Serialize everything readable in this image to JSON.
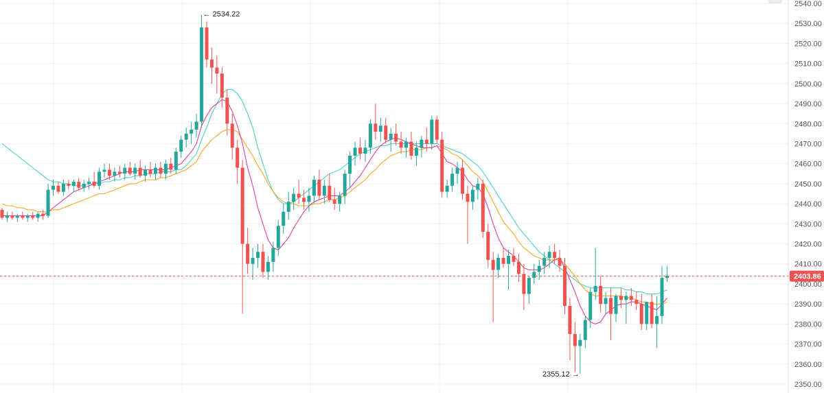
{
  "chart_data": {
    "type": "candlestick",
    "ylim": [
      2350,
      2540
    ],
    "y_ticks": [
      "2350.00",
      "2360.00",
      "2370.00",
      "2380.00",
      "2390.00",
      "2400.00",
      "2410.00",
      "2420.00",
      "2430.00",
      "2440.00",
      "2450.00",
      "2460.00",
      "2470.00",
      "2480.00",
      "2490.00",
      "2500.00",
      "2510.00",
      "2520.00",
      "2530.00",
      "2540.00"
    ],
    "grid": true,
    "current_price": "2403.86",
    "current_price_value": 2403.86,
    "high_annotation": "← 2534.22",
    "high_value": 2534.22,
    "high_index": 39,
    "low_annotation": "2355.12 →",
    "low_value": 2355.12,
    "low_index": 113,
    "colors": {
      "up": "#26a69a",
      "down": "#ef5350",
      "ma_fast": "#e040a0",
      "ma_mid": "#f5a623",
      "ma_slow": "#4dd0c8",
      "price_line": "#ef5350",
      "grid": "#f0f0f0"
    },
    "candles": [
      [
        2437,
        2438,
        2432,
        2433
      ],
      [
        2433,
        2436,
        2431,
        2434
      ],
      [
        2434,
        2436,
        2432,
        2433
      ],
      [
        2433,
        2435,
        2431,
        2434
      ],
      [
        2434,
        2436,
        2432,
        2433
      ],
      [
        2433,
        2435,
        2431,
        2434
      ],
      [
        2434,
        2436,
        2432,
        2433
      ],
      [
        2433,
        2436,
        2431,
        2435
      ],
      [
        2435,
        2437,
        2432,
        2434
      ],
      [
        2434,
        2450,
        2433,
        2447
      ],
      [
        2447,
        2452,
        2444,
        2449
      ],
      [
        2449,
        2451,
        2445,
        2446
      ],
      [
        2446,
        2452,
        2444,
        2450
      ],
      [
        2450,
        2452,
        2447,
        2449
      ],
      [
        2449,
        2452,
        2446,
        2451
      ],
      [
        2451,
        2453,
        2447,
        2448
      ],
      [
        2448,
        2452,
        2446,
        2450
      ],
      [
        2450,
        2453,
        2447,
        2451
      ],
      [
        2451,
        2456,
        2448,
        2449
      ],
      [
        2449,
        2458,
        2447,
        2456
      ],
      [
        2456,
        2460,
        2453,
        2457
      ],
      [
        2457,
        2460,
        2452,
        2454
      ],
      [
        2454,
        2458,
        2451,
        2456
      ],
      [
        2456,
        2459,
        2453,
        2455
      ],
      [
        2455,
        2460,
        2452,
        2458
      ],
      [
        2458,
        2461,
        2454,
        2455
      ],
      [
        2455,
        2460,
        2452,
        2458
      ],
      [
        2458,
        2462,
        2453,
        2454
      ],
      [
        2454,
        2459,
        2451,
        2457
      ],
      [
        2457,
        2461,
        2453,
        2455
      ],
      [
        2455,
        2460,
        2452,
        2458
      ],
      [
        2458,
        2461,
        2453,
        2455
      ],
      [
        2455,
        2462,
        2452,
        2460
      ],
      [
        2460,
        2463,
        2455,
        2457
      ],
      [
        2457,
        2468,
        2455,
        2466
      ],
      [
        2466,
        2474,
        2463,
        2472
      ],
      [
        2472,
        2478,
        2468,
        2475
      ],
      [
        2475,
        2481,
        2470,
        2477
      ],
      [
        2477,
        2485,
        2473,
        2481
      ],
      [
        2481,
        2534.22,
        2478,
        2528
      ],
      [
        2528,
        2531,
        2508,
        2512
      ],
      [
        2512,
        2518,
        2500,
        2508
      ],
      [
        2508,
        2514,
        2495,
        2505
      ],
      [
        2505,
        2508,
        2488,
        2493
      ],
      [
        2493,
        2497,
        2474,
        2480
      ],
      [
        2480,
        2485,
        2462,
        2468
      ],
      [
        2468,
        2472,
        2450,
        2458
      ],
      [
        2458,
        2462,
        2385,
        2420
      ],
      [
        2420,
        2428,
        2405,
        2410
      ],
      [
        2410,
        2418,
        2402,
        2413
      ],
      [
        2413,
        2420,
        2408,
        2416
      ],
      [
        2416,
        2420,
        2403,
        2406
      ],
      [
        2406,
        2414,
        2402,
        2411
      ],
      [
        2411,
        2421,
        2406,
        2418
      ],
      [
        2418,
        2432,
        2414,
        2429
      ],
      [
        2429,
        2440,
        2425,
        2436
      ],
      [
        2436,
        2446,
        2432,
        2441
      ],
      [
        2441,
        2448,
        2437,
        2445
      ],
      [
        2445,
        2452,
        2440,
        2443
      ],
      [
        2443,
        2447,
        2437,
        2441
      ],
      [
        2441,
        2448,
        2436,
        2444
      ],
      [
        2444,
        2454,
        2440,
        2452
      ],
      [
        2452,
        2457,
        2442,
        2444
      ],
      [
        2444,
        2452,
        2440,
        2449
      ],
      [
        2449,
        2455,
        2441,
        2442
      ],
      [
        2442,
        2448,
        2437,
        2440
      ],
      [
        2440,
        2446,
        2436,
        2444
      ],
      [
        2444,
        2457,
        2440,
        2455
      ],
      [
        2455,
        2466,
        2448,
        2464
      ],
      [
        2464,
        2471,
        2459,
        2468
      ],
      [
        2468,
        2473,
        2462,
        2465
      ],
      [
        2465,
        2472,
        2461,
        2468
      ],
      [
        2468,
        2482,
        2465,
        2480
      ],
      [
        2480,
        2490,
        2472,
        2476
      ],
      [
        2476,
        2483,
        2471,
        2479
      ],
      [
        2479,
        2483,
        2470,
        2472
      ],
      [
        2472,
        2478,
        2466,
        2475
      ],
      [
        2475,
        2480,
        2469,
        2471
      ],
      [
        2471,
        2476,
        2465,
        2468
      ],
      [
        2468,
        2473,
        2463,
        2471
      ],
      [
        2471,
        2476,
        2462,
        2464
      ],
      [
        2464,
        2471,
        2459,
        2468
      ],
      [
        2468,
        2474,
        2463,
        2472
      ],
      [
        2472,
        2478,
        2466,
        2470
      ],
      [
        2470,
        2484,
        2467,
        2482
      ],
      [
        2482,
        2484,
        2470,
        2472
      ],
      [
        2472,
        2476,
        2443,
        2446
      ],
      [
        2446,
        2452,
        2443,
        2449
      ],
      [
        2449,
        2458,
        2446,
        2455
      ],
      [
        2455,
        2461,
        2450,
        2458
      ],
      [
        2458,
        2462,
        2442,
        2445
      ],
      [
        2445,
        2449,
        2420,
        2441
      ],
      [
        2441,
        2449,
        2437,
        2447
      ],
      [
        2447,
        2453,
        2442,
        2450
      ],
      [
        2450,
        2452,
        2423,
        2426
      ],
      [
        2426,
        2430,
        2408,
        2412
      ],
      [
        2412,
        2416,
        2381,
        2407
      ],
      [
        2407,
        2415,
        2403,
        2413
      ],
      [
        2413,
        2418,
        2408,
        2410
      ],
      [
        2410,
        2417,
        2397,
        2414
      ],
      [
        2414,
        2418,
        2409,
        2411
      ],
      [
        2411,
        2415,
        2401,
        2405
      ],
      [
        2405,
        2410,
        2387,
        2395
      ],
      [
        2395,
        2404,
        2390,
        2403
      ],
      [
        2403,
        2410,
        2400,
        2406
      ],
      [
        2406,
        2412,
        2402,
        2409
      ],
      [
        2409,
        2416,
        2405,
        2413
      ],
      [
        2413,
        2419,
        2408,
        2416
      ],
      [
        2416,
        2420,
        2410,
        2413
      ],
      [
        2413,
        2417,
        2406,
        2409
      ],
      [
        2409,
        2413,
        2385,
        2389
      ],
      [
        2389,
        2393,
        2362,
        2375
      ],
      [
        2375,
        2381,
        2356,
        2369
      ],
      [
        2369,
        2375,
        2355.12,
        2372
      ],
      [
        2372,
        2384,
        2368,
        2382
      ],
      [
        2382,
        2398,
        2378,
        2396
      ],
      [
        2396,
        2418,
        2392,
        2399
      ],
      [
        2399,
        2404,
        2386,
        2390
      ],
      [
        2390,
        2396,
        2385,
        2393
      ],
      [
        2393,
        2398,
        2372,
        2385
      ],
      [
        2385,
        2395,
        2381,
        2394
      ],
      [
        2394,
        2398,
        2388,
        2392
      ],
      [
        2392,
        2396,
        2380,
        2394
      ],
      [
        2394,
        2398,
        2389,
        2392
      ],
      [
        2392,
        2396,
        2387,
        2390
      ],
      [
        2390,
        2395,
        2377,
        2380
      ],
      [
        2380,
        2390,
        2377,
        2391
      ],
      [
        2391,
        2395,
        2378,
        2380
      ],
      [
        2380,
        2394,
        2368,
        2384
      ],
      [
        2384,
        2409,
        2380,
        2403
      ],
      [
        2403,
        2409,
        2401,
        2404
      ]
    ],
    "ma_fast": [
      2434,
      2434,
      2434,
      2434,
      2434,
      2434,
      2434,
      2434,
      2434,
      2436,
      2438,
      2440,
      2442,
      2444,
      2446,
      2447,
      2448,
      2449,
      2450,
      2451,
      2452,
      2453,
      2454,
      2455,
      2456,
      2456,
      2456,
      2457,
      2457,
      2457,
      2457,
      2457,
      2457,
      2458,
      2459,
      2460,
      2463,
      2466,
      2470,
      2479,
      2484,
      2488,
      2490,
      2492,
      2491,
      2486,
      2479,
      2470,
      2458,
      2449,
      2438,
      2430,
      2422,
      2418,
      2417,
      2420,
      2423,
      2428,
      2432,
      2436,
      2439,
      2441,
      2442,
      2443,
      2444,
      2444,
      2444,
      2446,
      2448,
      2451,
      2454,
      2458,
      2462,
      2466,
      2469,
      2471,
      2472,
      2473,
      2472,
      2471,
      2470,
      2469,
      2468,
      2468,
      2468,
      2469,
      2465,
      2461,
      2460,
      2458,
      2456,
      2452,
      2449,
      2448,
      2445,
      2438,
      2430,
      2423,
      2418,
      2416,
      2414,
      2411,
      2408,
      2407,
      2407,
      2407,
      2408,
      2410,
      2412,
      2413,
      2408,
      2402,
      2396,
      2389,
      2384,
      2381,
      2380,
      2381,
      2385,
      2387,
      2389,
      2390,
      2390,
      2391,
      2391,
      2390,
      2389,
      2388,
      2387,
      2390,
      2393
    ],
    "ma_mid": [
      2440,
      2439,
      2439,
      2438,
      2438,
      2437,
      2437,
      2436,
      2436,
      2436,
      2437,
      2437,
      2438,
      2439,
      2440,
      2441,
      2442,
      2443,
      2444,
      2445,
      2445,
      2446,
      2447,
      2448,
      2449,
      2450,
      2450,
      2451,
      2452,
      2452,
      2452,
      2453,
      2453,
      2454,
      2455,
      2456,
      2457,
      2459,
      2461,
      2466,
      2469,
      2472,
      2474,
      2476,
      2477,
      2477,
      2476,
      2472,
      2468,
      2464,
      2459,
      2455,
      2450,
      2446,
      2443,
      2441,
      2440,
      2440,
      2439,
      2439,
      2439,
      2440,
      2440,
      2441,
      2442,
      2442,
      2443,
      2444,
      2446,
      2448,
      2450,
      2452,
      2455,
      2457,
      2460,
      2462,
      2464,
      2465,
      2466,
      2466,
      2467,
      2467,
      2467,
      2468,
      2468,
      2469,
      2468,
      2467,
      2465,
      2464,
      2462,
      2459,
      2456,
      2454,
      2451,
      2446,
      2441,
      2436,
      2431,
      2428,
      2425,
      2421,
      2418,
      2416,
      2414,
      2413,
      2412,
      2412,
      2412,
      2412,
      2410,
      2407,
      2404,
      2400,
      2397,
      2395,
      2394,
      2394,
      2394,
      2394,
      2394,
      2394,
      2393,
      2393,
      2392,
      2391,
      2391,
      2390,
      2390,
      2390,
      2391
    ],
    "ma_slow": [
      2470,
      2468,
      2466,
      2464,
      2462,
      2460,
      2458,
      2456,
      2454,
      2452,
      2451,
      2451,
      2450,
      2450,
      2449,
      2449,
      2449,
      2450,
      2450,
      2450,
      2451,
      2451,
      2452,
      2452,
      2453,
      2453,
      2454,
      2454,
      2455,
      2455,
      2455,
      2456,
      2456,
      2456,
      2457,
      2457,
      2459,
      2462,
      2465,
      2472,
      2478,
      2485,
      2490,
      2495,
      2497,
      2497,
      2495,
      2491,
      2485,
      2478,
      2468,
      2460,
      2452,
      2446,
      2442,
      2440,
      2440,
      2441,
      2443,
      2445,
      2447,
      2449,
      2451,
      2453,
      2455,
      2456,
      2457,
      2459,
      2461,
      2463,
      2465,
      2466,
      2467,
      2468,
      2469,
      2469,
      2470,
      2470,
      2470,
      2470,
      2470,
      2470,
      2470,
      2470,
      2470,
      2470,
      2469,
      2468,
      2467,
      2466,
      2465,
      2463,
      2461,
      2459,
      2456,
      2452,
      2448,
      2444,
      2440,
      2436,
      2432,
      2428,
      2425,
      2422,
      2419,
      2416,
      2414,
      2412,
      2410,
      2408,
      2406,
      2404,
      2402,
      2400,
      2399,
      2398,
      2398,
      2398,
      2398,
      2398,
      2398,
      2398,
      2397,
      2397,
      2396,
      2396,
      2395,
      2395,
      2395,
      2396,
      2397
    ]
  }
}
